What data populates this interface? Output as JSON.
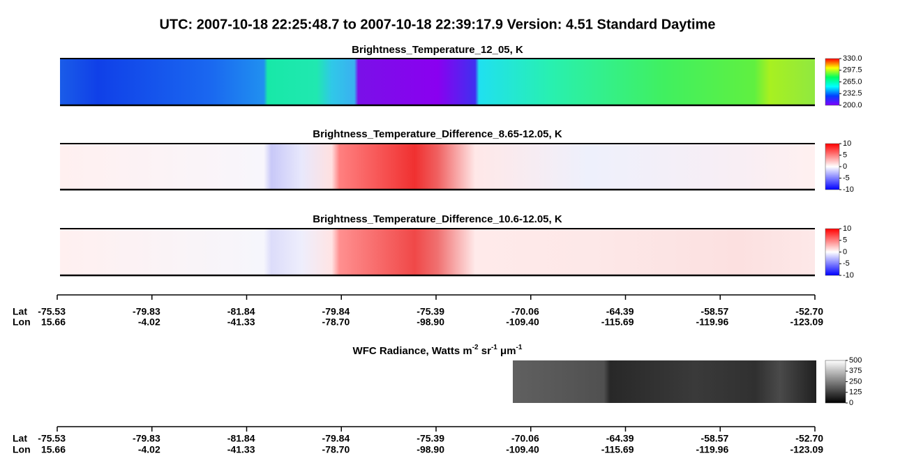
{
  "title": "UTC:  2007-10-18   22:25:48.7  to  2007-10-18   22:39:17.9    Version: 4.51  Standard Daytime",
  "chart_data": [
    {
      "type": "heatmap",
      "title": "Brightness_Temperature_12_05, K",
      "zlim": [
        200,
        330
      ],
      "zticks": [
        {
          "value": 330,
          "label": "330.0"
        },
        {
          "value": 297.5,
          "label": "297.5"
        },
        {
          "value": 265,
          "label": "265.0"
        },
        {
          "value": 232.5,
          "label": "232.5"
        },
        {
          "value": 200,
          "label": "200.0"
        }
      ]
    },
    {
      "type": "heatmap",
      "title": "Brightness_Temperature_Difference_8.65-12.05, K",
      "zlim": [
        -10,
        10
      ],
      "zticks": [
        10,
        5,
        0,
        -5,
        -10
      ]
    },
    {
      "type": "heatmap",
      "title": "Brightness_Temperature_Difference_10.6-12.05, K",
      "zlim": [
        -10,
        10
      ],
      "zticks": [
        10,
        5,
        0,
        -5,
        -10
      ]
    },
    {
      "type": "heatmap",
      "title_parts": [
        "WFC Radiance, Watts m",
        "-2",
        " sr",
        "-1",
        " μm",
        "-1"
      ],
      "zlim": [
        0,
        500
      ],
      "zticks": [
        500,
        375,
        250,
        125,
        0
      ]
    }
  ],
  "location_axis": {
    "lat_label": "Lat",
    "lon_label": "Lon",
    "lat": [
      "-75.53",
      "-79.83",
      "-81.84",
      "-79.84",
      "-75.39",
      "-70.06",
      "-64.39",
      "-58.57",
      "-52.70"
    ],
    "lon": [
      "15.66",
      "-4.02",
      "-41.33",
      "-78.70",
      "-98.90",
      "-109.40",
      "-115.69",
      "-119.96",
      "-123.09"
    ]
  }
}
